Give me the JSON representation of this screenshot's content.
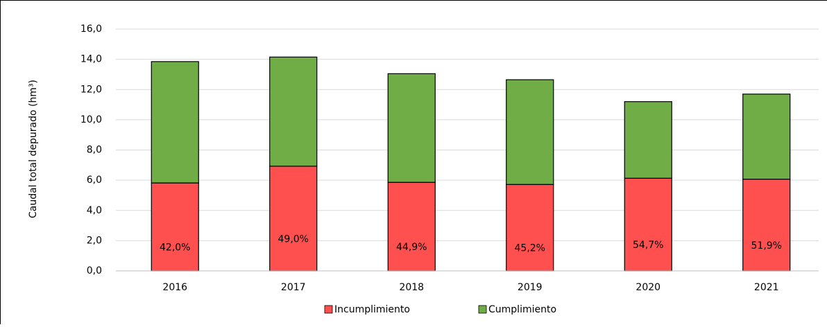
{
  "chart_data": {
    "type": "stacked_bar",
    "y_label": "Caudal total depurado (hm³)",
    "categories": [
      "2016",
      "2017",
      "2018",
      "2019",
      "2020",
      "2021"
    ],
    "series": [
      {
        "name": "Incumplimiento",
        "color": "#ff5050",
        "values": [
          5.82,
          6.93,
          5.86,
          5.72,
          6.13,
          6.07
        ],
        "share_labels": [
          "42,0%",
          "49,0%",
          "44,9%",
          "45,2%",
          "54,7%",
          "51,9%"
        ]
      },
      {
        "name": "Cumplimiento",
        "color": "#70ad47",
        "values": [
          8.03,
          7.22,
          7.19,
          6.93,
          5.07,
          5.63
        ]
      }
    ],
    "ylim": [
      0,
      16
    ],
    "yticks": [
      {
        "value": 0,
        "label": "0,0"
      },
      {
        "value": 2,
        "label": "2,0"
      },
      {
        "value": 4,
        "label": "4,0"
      },
      {
        "value": 6,
        "label": "6,0"
      },
      {
        "value": 8,
        "label": "8,0"
      },
      {
        "value": 10,
        "label": "10,0"
      },
      {
        "value": 12,
        "label": "12,0"
      },
      {
        "value": 14,
        "label": "14,0"
      },
      {
        "value": 16,
        "label": "16,0"
      }
    ],
    "grid": true,
    "legend": "bottom"
  }
}
